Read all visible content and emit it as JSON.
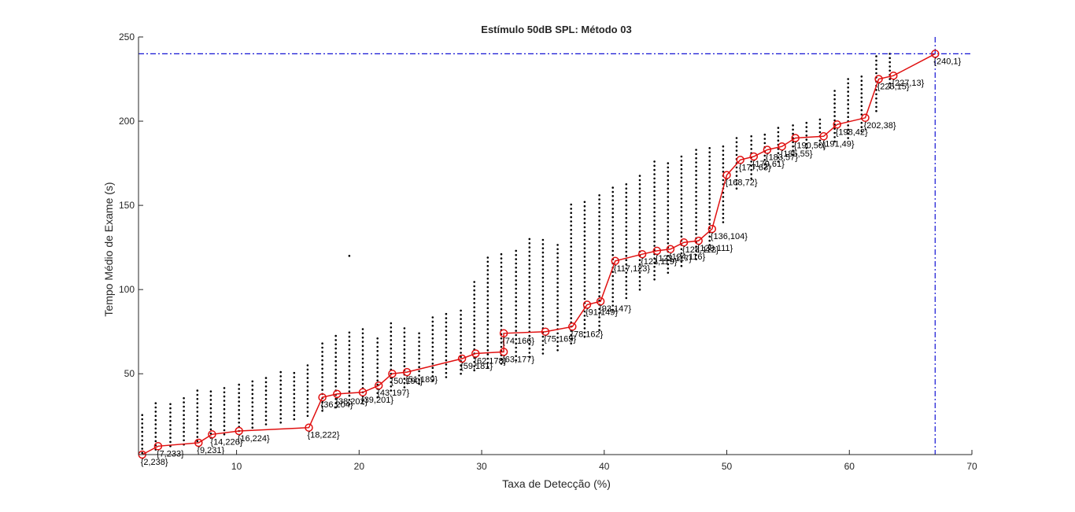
{
  "colors": {
    "background": "#ffffff",
    "axes": "#262626",
    "scatter": "#000000",
    "path": "#e01010",
    "reference": "#1414d4"
  },
  "chart_data": {
    "type": "scatter",
    "title": "Estímulo 50dB SPL: Método 03",
    "xlabel": "Taxa de Detecção (%)",
    "ylabel": "Tempo Médio de Exame (s)",
    "xlim": [
      2,
      70
    ],
    "ylim": [
      2,
      250
    ],
    "xticks": [
      10,
      20,
      30,
      40,
      50,
      60,
      70
    ],
    "yticks": [
      50,
      100,
      150,
      200,
      250
    ],
    "grid": false,
    "legend": "none",
    "reference_lines": {
      "x": 67,
      "y": 240,
      "style": "dash-dot"
    },
    "scatter_columns": [
      {
        "x": 2.3,
        "ymin": 3,
        "ymax": 27
      },
      {
        "x": 3.4,
        "ymin": 5,
        "ymax": 33
      },
      {
        "x": 4.6,
        "ymin": 7,
        "ymax": 34
      },
      {
        "x": 5.7,
        "ymin": 8,
        "ymax": 36
      },
      {
        "x": 6.8,
        "ymin": 10,
        "ymax": 40
      },
      {
        "x": 7.9,
        "ymin": 12,
        "ymax": 41
      },
      {
        "x": 9.0,
        "ymin": 14,
        "ymax": 43
      },
      {
        "x": 10.2,
        "ymin": 16,
        "ymax": 45
      },
      {
        "x": 11.3,
        "ymin": 18,
        "ymax": 47
      },
      {
        "x": 12.4,
        "ymin": 20,
        "ymax": 48
      },
      {
        "x": 13.6,
        "ymin": 21,
        "ymax": 52
      },
      {
        "x": 14.7,
        "ymin": 23,
        "ymax": 51
      },
      {
        "x": 15.8,
        "ymin": 25,
        "ymax": 55
      },
      {
        "x": 17.0,
        "ymin": 28,
        "ymax": 70
      },
      {
        "x": 18.1,
        "ymin": 30,
        "ymax": 74
      },
      {
        "x": 19.2,
        "ymin": 32,
        "ymax": 76
      },
      {
        "x": 20.3,
        "ymin": 34,
        "ymax": 77
      },
      {
        "x": 21.5,
        "ymin": 36,
        "ymax": 72
      },
      {
        "x": 22.6,
        "ymin": 40,
        "ymax": 80
      },
      {
        "x": 23.7,
        "ymin": 42,
        "ymax": 78
      },
      {
        "x": 24.9,
        "ymin": 44,
        "ymax": 76
      },
      {
        "x": 26.0,
        "ymin": 46,
        "ymax": 85
      },
      {
        "x": 27.1,
        "ymin": 48,
        "ymax": 86
      },
      {
        "x": 28.3,
        "ymin": 50,
        "ymax": 88
      },
      {
        "x": 29.4,
        "ymin": 52,
        "ymax": 105
      },
      {
        "x": 30.5,
        "ymin": 54,
        "ymax": 120
      },
      {
        "x": 31.6,
        "ymin": 56,
        "ymax": 122
      },
      {
        "x": 32.8,
        "ymin": 58,
        "ymax": 125
      },
      {
        "x": 33.9,
        "ymin": 60,
        "ymax": 130
      },
      {
        "x": 35.0,
        "ymin": 62,
        "ymax": 130
      },
      {
        "x": 36.2,
        "ymin": 64,
        "ymax": 128
      },
      {
        "x": 37.3,
        "ymin": 68,
        "ymax": 152
      },
      {
        "x": 38.4,
        "ymin": 72,
        "ymax": 152
      },
      {
        "x": 39.6,
        "ymin": 76,
        "ymax": 158
      },
      {
        "x": 40.7,
        "ymin": 88,
        "ymax": 162
      },
      {
        "x": 41.8,
        "ymin": 95,
        "ymax": 164
      },
      {
        "x": 42.9,
        "ymin": 100,
        "ymax": 168
      },
      {
        "x": 44.1,
        "ymin": 106,
        "ymax": 176
      },
      {
        "x": 45.2,
        "ymin": 110,
        "ymax": 177
      },
      {
        "x": 46.3,
        "ymin": 114,
        "ymax": 180
      },
      {
        "x": 47.5,
        "ymin": 118,
        "ymax": 184
      },
      {
        "x": 48.6,
        "ymin": 124,
        "ymax": 186
      },
      {
        "x": 49.7,
        "ymin": 140,
        "ymax": 186
      },
      {
        "x": 50.8,
        "ymin": 160,
        "ymax": 190
      },
      {
        "x": 52.0,
        "ymin": 166,
        "ymax": 192
      },
      {
        "x": 53.1,
        "ymin": 172,
        "ymax": 194
      },
      {
        "x": 54.2,
        "ymin": 176,
        "ymax": 196
      },
      {
        "x": 55.4,
        "ymin": 180,
        "ymax": 198
      },
      {
        "x": 56.5,
        "ymin": 184,
        "ymax": 200
      },
      {
        "x": 57.6,
        "ymin": 186,
        "ymax": 202
      },
      {
        "x": 58.8,
        "ymin": 188,
        "ymax": 218
      },
      {
        "x": 59.9,
        "ymin": 190,
        "ymax": 225
      },
      {
        "x": 61.0,
        "ymin": 194,
        "ymax": 228
      },
      {
        "x": 62.2,
        "ymin": 206,
        "ymax": 240
      },
      {
        "x": 63.3,
        "ymin": 220,
        "ymax": 240
      }
    ],
    "scatter_outliers": [
      {
        "x": 19.2,
        "y": 120
      }
    ],
    "series": [
      {
        "points": [
          {
            "x": 2.3,
            "y": 2,
            "label": "{2,238}"
          },
          {
            "x": 3.6,
            "y": 7,
            "label": "{7,233}"
          },
          {
            "x": 6.9,
            "y": 9,
            "label": "{9,231}"
          },
          {
            "x": 8.0,
            "y": 14,
            "label": "{14,226}"
          },
          {
            "x": 10.2,
            "y": 16,
            "label": "{16,224}"
          },
          {
            "x": 15.9,
            "y": 18,
            "label": "{18,222}"
          },
          {
            "x": 17.0,
            "y": 36,
            "label": "{36,204}"
          },
          {
            "x": 18.2,
            "y": 38,
            "label": "{38,202}"
          },
          {
            "x": 20.3,
            "y": 39,
            "label": "{39,201}"
          },
          {
            "x": 21.6,
            "y": 43,
            "label": "{43,197}"
          },
          {
            "x": 22.7,
            "y": 50,
            "label": "{50,190}"
          },
          {
            "x": 23.9,
            "y": 51,
            "label": "{51,189}"
          },
          {
            "x": 28.4,
            "y": 59,
            "label": "{59,181}"
          },
          {
            "x": 29.5,
            "y": 62,
            "label": "{62,178}"
          },
          {
            "x": 31.8,
            "y": 63,
            "label": "{63,177}"
          },
          {
            "x": 31.8,
            "y": 74,
            "label": "{74,166}"
          },
          {
            "x": 35.2,
            "y": 75,
            "label": "{75,165}"
          },
          {
            "x": 37.4,
            "y": 78,
            "label": "{78,162}"
          },
          {
            "x": 38.6,
            "y": 91,
            "label": "{91,149}"
          },
          {
            "x": 39.7,
            "y": 93,
            "label": "{93,147}"
          },
          {
            "x": 40.9,
            "y": 117,
            "label": "{117,123}"
          },
          {
            "x": 43.1,
            "y": 121,
            "label": "{121,119}"
          },
          {
            "x": 44.3,
            "y": 123,
            "label": "{123,117}"
          },
          {
            "x": 45.4,
            "y": 124,
            "label": "{124,116}"
          },
          {
            "x": 46.5,
            "y": 128,
            "label": "{128,112}"
          },
          {
            "x": 47.7,
            "y": 129,
            "label": "{129,111}"
          },
          {
            "x": 48.8,
            "y": 136,
            "label": "{136,104}"
          },
          {
            "x": 50.0,
            "y": 168,
            "label": "{168,72}"
          },
          {
            "x": 51.1,
            "y": 177,
            "label": "{177,63}"
          },
          {
            "x": 52.2,
            "y": 179,
            "label": "{179,61}"
          },
          {
            "x": 53.3,
            "y": 183,
            "label": "{183,57}"
          },
          {
            "x": 54.5,
            "y": 185,
            "label": "{185,55}"
          },
          {
            "x": 55.6,
            "y": 190,
            "label": "{190,50}"
          },
          {
            "x": 57.9,
            "y": 191,
            "label": "{191,49}"
          },
          {
            "x": 59.0,
            "y": 198,
            "label": "{198,42}"
          },
          {
            "x": 61.3,
            "y": 202,
            "label": "{202,38}"
          },
          {
            "x": 62.4,
            "y": 225,
            "label": "{225,15}"
          },
          {
            "x": 63.6,
            "y": 227,
            "label": "{227,13}"
          },
          {
            "x": 67.0,
            "y": 240,
            "label": "{240,1}"
          }
        ]
      }
    ]
  }
}
